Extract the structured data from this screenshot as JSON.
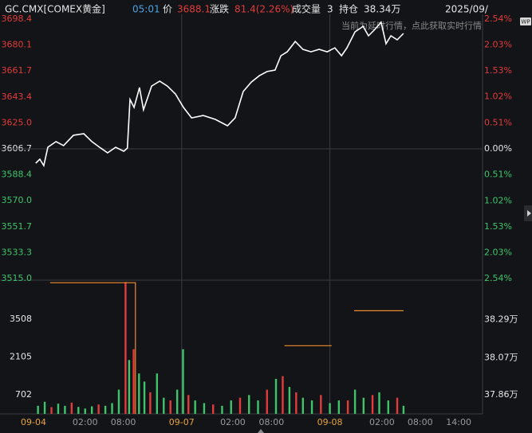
{
  "header": {
    "symbol": "GC.CMX[COMEX黄金]",
    "time": "05:01",
    "price_label": "价",
    "price": "3688.1",
    "change_label": "涨跌",
    "change": "81.4(2.26%)",
    "volume_label": "成交量",
    "volume": "3",
    "oi_label": "持仓",
    "oi": "38.34万",
    "date": "2025/09/",
    "notice": "当前为延时行情，点此获取实时行情",
    "badge": "WP"
  },
  "chart_data": [
    {
      "type": "line",
      "color": "#ffffff",
      "up_color": "#e23b3b",
      "down_color": "#3fc46b",
      "flat_color": "#e6e6e6",
      "x": [
        0.5,
        1.4,
        2.3,
        3.2,
        5.0,
        6.7,
        8.9,
        11.2,
        13.0,
        14.7,
        16.5,
        18.3,
        20.1,
        20.9,
        21.5,
        22.4,
        23.6,
        24.5,
        26.3,
        28.1,
        29.8,
        31.6,
        33.4,
        35.2,
        37.8,
        40.5,
        43.2,
        44.9,
        46.7,
        48.5,
        50.3,
        52.0,
        53.8,
        55.1,
        56.5,
        58.3,
        60.0,
        61.8,
        63.6,
        65.4,
        67.1,
        68.6,
        69.8,
        71.6,
        73.4,
        74.6,
        76.0,
        77.4,
        78.5,
        79.6,
        81.0,
        82.4
      ],
      "values": [
        3596.6,
        3599.4,
        3594.9,
        3607.8,
        3611.8,
        3609.0,
        3616.3,
        3617.4,
        3611.8,
        3607.8,
        3603.9,
        3607.8,
        3605.0,
        3607.2,
        3641.6,
        3636.0,
        3650.0,
        3634.3,
        3651.1,
        3654.5,
        3651.1,
        3645.5,
        3636.0,
        3628.6,
        3630.3,
        3627.5,
        3623.0,
        3628.6,
        3647.2,
        3653.9,
        3658.4,
        3661.3,
        3662.4,
        3672.5,
        3675.3,
        3682.6,
        3677.0,
        3675.3,
        3677.0,
        3675.3,
        3678.1,
        3672.5,
        3678.1,
        3689.4,
        3693.3,
        3686.6,
        3691.1,
        3696.2,
        3681.0,
        3686.6,
        3683.8,
        3688.3
      ],
      "xlim": [
        0,
        100
      ],
      "xticks": [
        {
          "value": 0,
          "label": "09-04"
        },
        {
          "value": 11.5,
          "label": "02:00"
        },
        {
          "value": 20,
          "label": "08:00"
        },
        {
          "value": 33,
          "label": "09-07"
        },
        {
          "value": 44.4,
          "label": "02:00"
        },
        {
          "value": 53,
          "label": "08:00"
        },
        {
          "value": 66,
          "label": "09-08"
        },
        {
          "value": 77.6,
          "label": "02:00"
        },
        {
          "value": 86.1,
          "label": "08:00"
        },
        {
          "value": 94.7,
          "label": "14:00"
        }
      ],
      "x_date_color": "#e8a33d",
      "x_time_color": "#9a9a9a",
      "ylim": [
        3515.0,
        3698.4
      ],
      "yticks": [
        {
          "value": 3698.4,
          "label": "3698.4"
        },
        {
          "value": 3680.1,
          "label": "3680.1"
        },
        {
          "value": 3661.7,
          "label": "3661.7"
        },
        {
          "value": 3643.4,
          "label": "3643.4"
        },
        {
          "value": 3625.0,
          "label": "3625.0"
        },
        {
          "value": 3606.7,
          "label": "3606.7"
        },
        {
          "value": 3588.4,
          "label": "3588.4"
        },
        {
          "value": 3570.0,
          "label": "3570.0"
        },
        {
          "value": 3551.7,
          "label": "3551.7"
        },
        {
          "value": 3533.3,
          "label": "3533.3"
        },
        {
          "value": 3515.0,
          "label": "3515.0"
        }
      ],
      "y2lim": [
        -2.54,
        2.54
      ],
      "y2ticks": [
        {
          "value": 2.54,
          "label": "2.54%"
        },
        {
          "value": 2.03,
          "label": "2.03%"
        },
        {
          "value": 1.53,
          "label": "1.53%"
        },
        {
          "value": 1.02,
          "label": "1.02%"
        },
        {
          "value": 0.51,
          "label": "0.51%"
        },
        {
          "value": 0,
          "label": "0.00%"
        },
        {
          "value": -0.51,
          "label": "0.51%"
        },
        {
          "value": -1.02,
          "label": "1.02%"
        },
        {
          "value": -1.53,
          "label": "1.53%"
        },
        {
          "value": -2.03,
          "label": "2.03%"
        },
        {
          "value": -2.54,
          "label": "2.54%"
        }
      ]
    },
    {
      "type": "bar",
      "x": [
        1,
        2.5,
        4,
        5.5,
        7,
        8.5,
        10,
        11.5,
        13,
        14.5,
        16,
        17.5,
        19,
        20.5,
        21.3,
        22.3,
        23.5,
        24.7,
        26,
        27.5,
        29,
        30.5,
        32,
        33.3,
        34.5,
        36,
        38,
        40,
        42,
        44,
        46,
        48,
        50,
        52,
        54,
        55.5,
        57,
        58.5,
        60,
        62,
        64,
        66,
        68,
        70,
        71.6,
        73.5,
        75.5,
        77,
        79,
        81,
        82.4
      ],
      "values": [
        300,
        450,
        250,
        380,
        300,
        420,
        260,
        200,
        280,
        350,
        300,
        400,
        900,
        4900,
        2000,
        2400,
        1500,
        1200,
        800,
        1500,
        600,
        500,
        900,
        2400,
        700,
        500,
        400,
        350,
        300,
        500,
        600,
        700,
        500,
        900,
        1300,
        1400,
        1000,
        800,
        600,
        500,
        700,
        400,
        500,
        500,
        900,
        600,
        700,
        800,
        500,
        600,
        300
      ],
      "colors": [
        "#3fc46b",
        "#3fc46b",
        "#e23b3b",
        "#3fc46b",
        "#3fc46b",
        "#e23b3b",
        "#3fc46b",
        "#3fc46b",
        "#3fc46b",
        "#e23b3b",
        "#3fc46b",
        "#3fc46b",
        "#3fc46b",
        "#e23b3b",
        "#3fc46b",
        "#e23b3b",
        "#3fc46b",
        "#3fc46b",
        "#e23b3b",
        "#3fc46b",
        "#3fc46b",
        "#e23b3b",
        "#3fc46b",
        "#3fc46b",
        "#e23b3b",
        "#3fc46b",
        "#3fc46b",
        "#e23b3b",
        "#3fc46b",
        "#3fc46b",
        "#e23b3b",
        "#3fc46b",
        "#3fc46b",
        "#e23b3b",
        "#3fc46b",
        "#e23b3b",
        "#3fc46b",
        "#e23b3b",
        "#3fc46b",
        "#3fc46b",
        "#e23b3b",
        "#3fc46b",
        "#3fc46b",
        "#e23b3b",
        "#3fc46b",
        "#3fc46b",
        "#e23b3b",
        "#3fc46b",
        "#3fc46b",
        "#e23b3b",
        "#3fc46b"
      ],
      "xlim": [
        0,
        100
      ],
      "ylim": [
        0,
        4933
      ],
      "yticks": [
        3508,
        2105,
        702
      ],
      "oi_color": "#f08a2c",
      "oi_x": [
        3.7,
        22.7,
        22.7,
        44,
        55.9,
        66.4,
        70,
        71.4,
        82.4
      ],
      "oi_values": [
        38.5,
        38.5,
        37.75,
        null,
        38.14,
        38.14,
        null,
        38.34,
        38.34
      ],
      "y2lim": [
        37.75,
        38.51
      ],
      "y2ticks": [
        {
          "value": 38.29,
          "label": "38.29万"
        },
        {
          "value": 38.07,
          "label": "38.07万"
        },
        {
          "value": 37.86,
          "label": "37.86万"
        }
      ]
    }
  ]
}
